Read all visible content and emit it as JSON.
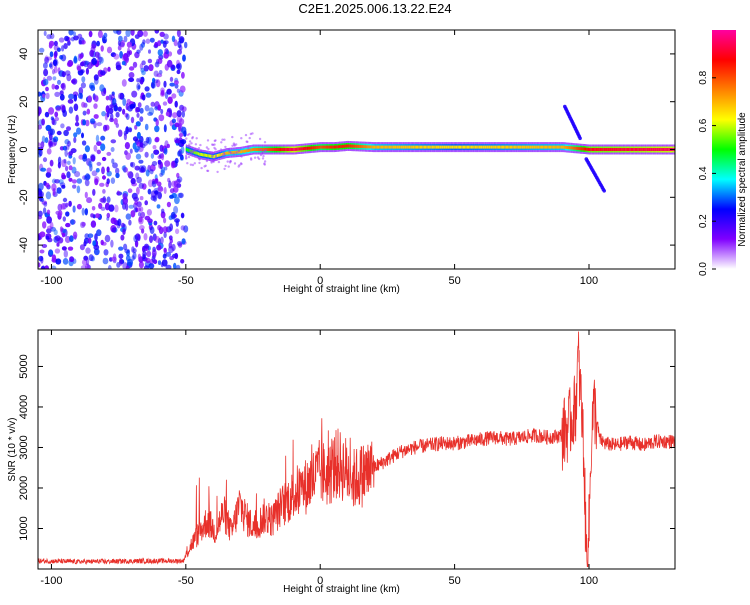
{
  "page": {
    "title": "C2E1.2025.006.13.22.E24"
  },
  "chart_data": [
    {
      "type": "heatmap",
      "title": "C2E1.2025.006.13.22.E24",
      "xlabel": "Height of straight line (km)",
      "ylabel": "Frequency (Hz)",
      "xlim": [
        -105,
        132
      ],
      "ylim": [
        -50,
        50
      ],
      "xticks": [
        -100,
        -50,
        0,
        50,
        100
      ],
      "yticks": [
        -40,
        -20,
        0,
        20,
        40
      ],
      "colorbar": {
        "label": "Normalized spectral amplitude",
        "range": [
          0,
          1
        ],
        "ticks": [
          0,
          0.2,
          0.4,
          0.6,
          0.8
        ],
        "tick_labels": [
          "0.0",
          "0.2",
          "0.4",
          "0.6",
          "0.8"
        ],
        "colors": [
          "#ffffff",
          "#8000ff",
          "#0000ff",
          "#00ffff",
          "#00ff00",
          "#ffff00",
          "#ff8000",
          "#ff0000",
          "#ff00a0"
        ]
      },
      "ridge": {
        "x": [
          -50,
          -45,
          -40,
          -35,
          -30,
          -25,
          -20,
          -10,
          0,
          5,
          10,
          20,
          50,
          90,
          100,
          132
        ],
        "freq": [
          0,
          -2,
          -3,
          -1.5,
          -1,
          0,
          0,
          0,
          1,
          1,
          1.5,
          1,
          1,
          1,
          0,
          0
        ],
        "peak_amplitude": [
          0.5,
          0.6,
          0.6,
          0.7,
          0.7,
          0.75,
          0.8,
          0.95,
          0.8,
          0.85,
          0.85,
          0.7,
          0.65,
          0.7,
          0.9,
          0.95
        ]
      },
      "chirp_segments": [
        {
          "x": [
            91,
            97
          ],
          "freq": [
            18,
            4
          ]
        },
        {
          "x": [
            99,
            106
          ],
          "freq": [
            -4,
            -18
          ]
        }
      ],
      "noise_region": {
        "x": [
          -105,
          -50
        ],
        "freq": [
          -50,
          50
        ],
        "amplitude_range": [
          0.1,
          0.3
        ]
      }
    },
    {
      "type": "line",
      "xlabel": "Height of straight line (km)",
      "ylabel": "SNR (10 * v/v)",
      "xlim": [
        -105,
        132
      ],
      "ylim": [
        0,
        5900
      ],
      "xticks": [
        -100,
        -50,
        0,
        50,
        100
      ],
      "yticks": [
        1000,
        2000,
        3000,
        4000,
        5000
      ],
      "series": [
        {
          "color": "#e8302a",
          "x": [
            -105,
            -90,
            -75,
            -60,
            -51,
            -48,
            -45,
            -42,
            -39,
            -36,
            -33,
            -30,
            -27,
            -24,
            -21,
            -18,
            -15,
            -12,
            -9,
            -6,
            -3,
            0,
            3,
            6,
            9,
            12,
            15,
            20,
            25,
            30,
            35,
            40,
            45,
            50,
            55,
            60,
            65,
            70,
            75,
            80,
            85,
            90,
            93,
            95,
            96,
            97,
            98,
            99,
            100,
            101,
            102,
            104,
            106,
            110,
            115,
            120,
            125,
            132
          ],
          "y": [
            200,
            180,
            190,
            200,
            200,
            600,
            900,
            1200,
            900,
            1400,
            900,
            1600,
            1200,
            1000,
            1300,
            1200,
            1500,
            1700,
            1900,
            2000,
            2200,
            2400,
            2300,
            2600,
            2500,
            2200,
            2300,
            2500,
            2700,
            2900,
            3000,
            3050,
            3100,
            3100,
            3150,
            3200,
            3250,
            3200,
            3250,
            3300,
            3250,
            3300,
            3600,
            4000,
            5200,
            4200,
            3000,
            300,
            1000,
            3500,
            4000,
            3200,
            3100,
            3050,
            3150,
            3050,
            3150,
            3150
          ]
        }
      ]
    }
  ]
}
